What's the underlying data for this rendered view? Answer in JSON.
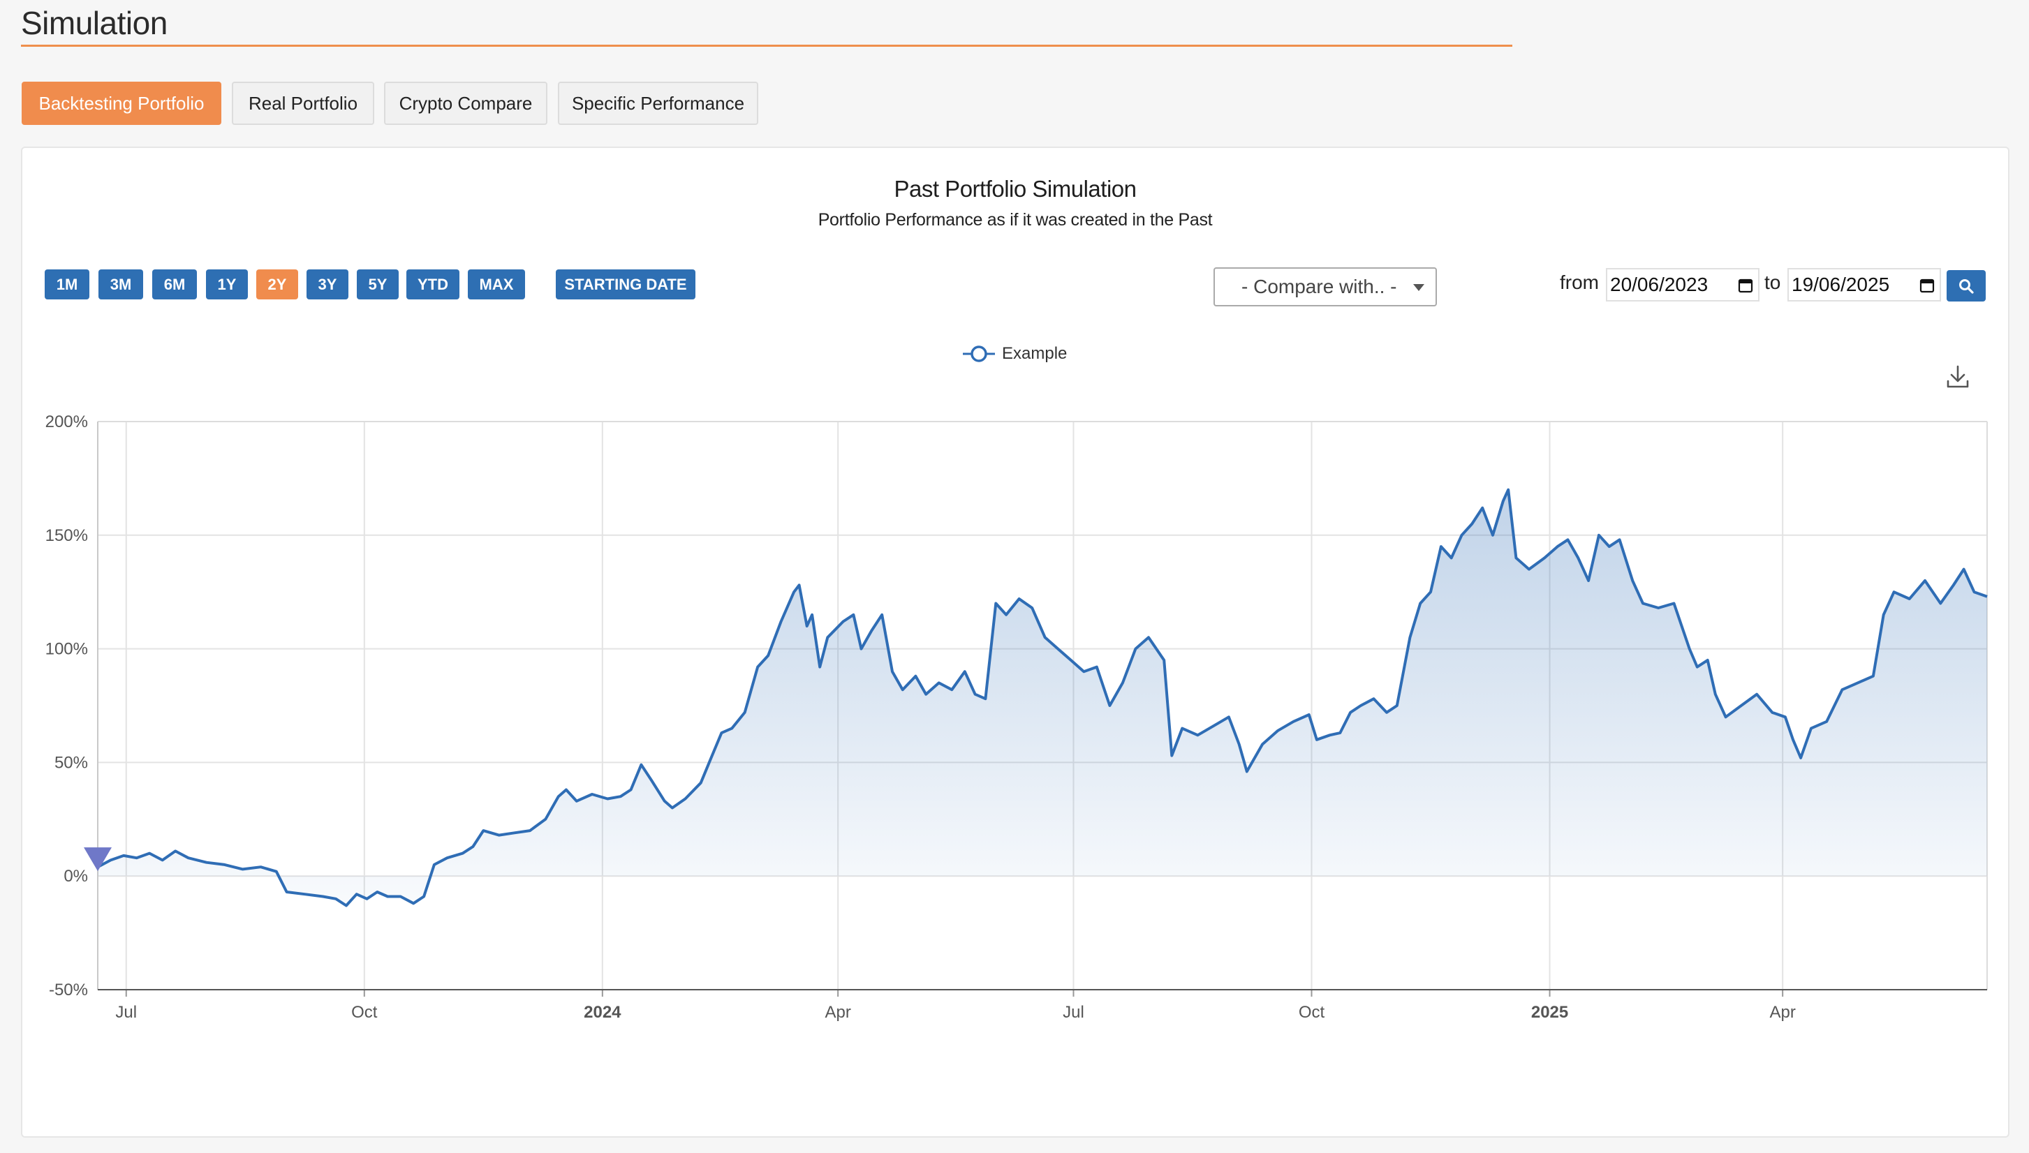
{
  "header": {
    "title": "Simulation"
  },
  "tabs": [
    {
      "label": "Backtesting Portfolio",
      "active": true
    },
    {
      "label": "Real Portfolio",
      "active": false
    },
    {
      "label": "Crypto Compare",
      "active": false
    },
    {
      "label": "Specific Performance",
      "active": false
    }
  ],
  "range_buttons": [
    {
      "label": "1M",
      "active": false
    },
    {
      "label": "3M",
      "active": false
    },
    {
      "label": "6M",
      "active": false
    },
    {
      "label": "1Y",
      "active": false
    },
    {
      "label": "2Y",
      "active": true
    },
    {
      "label": "3Y",
      "active": false
    },
    {
      "label": "5Y",
      "active": false
    },
    {
      "label": "YTD",
      "active": false
    },
    {
      "label": "MAX",
      "active": false
    },
    {
      "label": "STARTING DATE",
      "active": false
    }
  ],
  "compare": {
    "label": "- Compare with.. -"
  },
  "date_range": {
    "from_label": "from",
    "from": "20/06/2023",
    "to_label": "to",
    "to": "19/06/2025"
  },
  "colors": {
    "accent": "#f08c4d",
    "primary": "#2e6fb3",
    "line": "#2f6db5",
    "marker": "#6f78c8"
  },
  "chart_data": {
    "type": "area",
    "title": "Past Portfolio Simulation",
    "subtitle": "Portfolio Performance as if it was created in the Past",
    "legend": [
      "Example"
    ],
    "xlabel": "",
    "ylabel": "",
    "ylim": [
      -50,
      200
    ],
    "y_ticks": [
      "200%",
      "150%",
      "100%",
      "50%",
      "0%",
      "-50%"
    ],
    "x_ticks": [
      {
        "label": "Jul",
        "date": "2023-07-01",
        "bold": false
      },
      {
        "label": "Oct",
        "date": "2023-10-01",
        "bold": false
      },
      {
        "label": "2024",
        "date": "2024-01-01",
        "bold": true
      },
      {
        "label": "Apr",
        "date": "2024-04-01",
        "bold": false
      },
      {
        "label": "Jul",
        "date": "2024-07-01",
        "bold": false
      },
      {
        "label": "Oct",
        "date": "2024-10-01",
        "bold": false
      },
      {
        "label": "2025",
        "date": "2025-01-01",
        "bold": true
      },
      {
        "label": "Apr",
        "date": "2025-04-01",
        "bold": false
      }
    ],
    "x_range": [
      "2023-06-20",
      "2025-06-19"
    ],
    "series": [
      {
        "name": "Example",
        "points": [
          [
            "2023-06-20",
            4
          ],
          [
            "2023-06-25",
            7
          ],
          [
            "2023-06-30",
            9
          ],
          [
            "2023-07-05",
            8
          ],
          [
            "2023-07-10",
            10
          ],
          [
            "2023-07-15",
            7
          ],
          [
            "2023-07-20",
            11
          ],
          [
            "2023-07-25",
            8
          ],
          [
            "2023-08-01",
            6
          ],
          [
            "2023-08-08",
            5
          ],
          [
            "2023-08-15",
            3
          ],
          [
            "2023-08-22",
            4
          ],
          [
            "2023-08-28",
            2
          ],
          [
            "2023-09-01",
            -7
          ],
          [
            "2023-09-08",
            -8
          ],
          [
            "2023-09-15",
            -9
          ],
          [
            "2023-09-20",
            -10
          ],
          [
            "2023-09-24",
            -13
          ],
          [
            "2023-09-28",
            -8
          ],
          [
            "2023-10-02",
            -10
          ],
          [
            "2023-10-06",
            -7
          ],
          [
            "2023-10-10",
            -9
          ],
          [
            "2023-10-15",
            -9
          ],
          [
            "2023-10-20",
            -12
          ],
          [
            "2023-10-24",
            -9
          ],
          [
            "2023-10-28",
            5
          ],
          [
            "2023-11-02",
            8
          ],
          [
            "2023-11-08",
            10
          ],
          [
            "2023-11-12",
            13
          ],
          [
            "2023-11-16",
            20
          ],
          [
            "2023-11-22",
            18
          ],
          [
            "2023-11-28",
            19
          ],
          [
            "2023-12-04",
            20
          ],
          [
            "2023-12-10",
            25
          ],
          [
            "2023-12-15",
            35
          ],
          [
            "2023-12-18",
            38
          ],
          [
            "2023-12-22",
            33
          ],
          [
            "2023-12-28",
            36
          ],
          [
            "2024-01-03",
            34
          ],
          [
            "2024-01-08",
            35
          ],
          [
            "2024-01-12",
            38
          ],
          [
            "2024-01-16",
            49
          ],
          [
            "2024-01-20",
            42
          ],
          [
            "2024-01-25",
            33
          ],
          [
            "2024-01-28",
            30
          ],
          [
            "2024-02-02",
            34
          ],
          [
            "2024-02-08",
            41
          ],
          [
            "2024-02-12",
            52
          ],
          [
            "2024-02-16",
            63
          ],
          [
            "2024-02-20",
            65
          ],
          [
            "2024-02-25",
            72
          ],
          [
            "2024-03-01",
            92
          ],
          [
            "2024-03-05",
            97
          ],
          [
            "2024-03-10",
            112
          ],
          [
            "2024-03-15",
            125
          ],
          [
            "2024-03-17",
            128
          ],
          [
            "2024-03-20",
            110
          ],
          [
            "2024-03-22",
            115
          ],
          [
            "2024-03-25",
            92
          ],
          [
            "2024-03-28",
            105
          ],
          [
            "2024-04-03",
            112
          ],
          [
            "2024-04-07",
            115
          ],
          [
            "2024-04-10",
            100
          ],
          [
            "2024-04-14",
            108
          ],
          [
            "2024-04-18",
            115
          ],
          [
            "2024-04-22",
            90
          ],
          [
            "2024-04-26",
            82
          ],
          [
            "2024-05-01",
            88
          ],
          [
            "2024-05-05",
            80
          ],
          [
            "2024-05-10",
            85
          ],
          [
            "2024-05-15",
            82
          ],
          [
            "2024-05-20",
            90
          ],
          [
            "2024-05-24",
            80
          ],
          [
            "2024-05-28",
            78
          ],
          [
            "2024-06-01",
            120
          ],
          [
            "2024-06-05",
            115
          ],
          [
            "2024-06-10",
            122
          ],
          [
            "2024-06-15",
            118
          ],
          [
            "2024-06-20",
            105
          ],
          [
            "2024-06-25",
            100
          ],
          [
            "2024-06-30",
            95
          ],
          [
            "2024-07-05",
            90
          ],
          [
            "2024-07-10",
            92
          ],
          [
            "2024-07-15",
            75
          ],
          [
            "2024-07-20",
            85
          ],
          [
            "2024-07-25",
            100
          ],
          [
            "2024-07-30",
            105
          ],
          [
            "2024-08-05",
            95
          ],
          [
            "2024-08-08",
            53
          ],
          [
            "2024-08-12",
            65
          ],
          [
            "2024-08-18",
            62
          ],
          [
            "2024-08-24",
            66
          ],
          [
            "2024-08-30",
            70
          ],
          [
            "2024-09-03",
            58
          ],
          [
            "2024-09-06",
            46
          ],
          [
            "2024-09-12",
            58
          ],
          [
            "2024-09-18",
            64
          ],
          [
            "2024-09-24",
            68
          ],
          [
            "2024-09-30",
            71
          ],
          [
            "2024-10-03",
            60
          ],
          [
            "2024-10-08",
            62
          ],
          [
            "2024-10-12",
            63
          ],
          [
            "2024-10-16",
            72
          ],
          [
            "2024-10-20",
            75
          ],
          [
            "2024-10-25",
            78
          ],
          [
            "2024-10-30",
            72
          ],
          [
            "2024-11-03",
            75
          ],
          [
            "2024-11-08",
            105
          ],
          [
            "2024-11-12",
            120
          ],
          [
            "2024-11-16",
            125
          ],
          [
            "2024-11-20",
            145
          ],
          [
            "2024-11-24",
            140
          ],
          [
            "2024-11-28",
            150
          ],
          [
            "2024-12-02",
            155
          ],
          [
            "2024-12-06",
            162
          ],
          [
            "2024-12-10",
            150
          ],
          [
            "2024-12-14",
            165
          ],
          [
            "2024-12-16",
            170
          ],
          [
            "2024-12-19",
            140
          ],
          [
            "2024-12-24",
            135
          ],
          [
            "2024-12-30",
            140
          ],
          [
            "2025-01-04",
            145
          ],
          [
            "2025-01-08",
            148
          ],
          [
            "2025-01-12",
            140
          ],
          [
            "2025-01-16",
            130
          ],
          [
            "2025-01-20",
            150
          ],
          [
            "2025-01-24",
            145
          ],
          [
            "2025-01-28",
            148
          ],
          [
            "2025-02-02",
            130
          ],
          [
            "2025-02-06",
            120
          ],
          [
            "2025-02-12",
            118
          ],
          [
            "2025-02-18",
            120
          ],
          [
            "2025-02-24",
            100
          ],
          [
            "2025-02-27",
            92
          ],
          [
            "2025-03-03",
            95
          ],
          [
            "2025-03-06",
            80
          ],
          [
            "2025-03-10",
            70
          ],
          [
            "2025-03-16",
            75
          ],
          [
            "2025-03-22",
            80
          ],
          [
            "2025-03-28",
            72
          ],
          [
            "2025-04-02",
            70
          ],
          [
            "2025-04-05",
            60
          ],
          [
            "2025-04-08",
            52
          ],
          [
            "2025-04-12",
            65
          ],
          [
            "2025-04-18",
            68
          ],
          [
            "2025-04-24",
            82
          ],
          [
            "2025-04-30",
            85
          ],
          [
            "2025-05-06",
            88
          ],
          [
            "2025-05-10",
            115
          ],
          [
            "2025-05-14",
            125
          ],
          [
            "2025-05-20",
            122
          ],
          [
            "2025-05-26",
            130
          ],
          [
            "2025-06-01",
            120
          ],
          [
            "2025-06-06",
            128
          ],
          [
            "2025-06-10",
            135
          ],
          [
            "2025-06-14",
            125
          ],
          [
            "2025-06-19",
            123
          ]
        ]
      }
    ],
    "start_marker": {
      "date": "2023-06-20",
      "value": 4
    }
  }
}
